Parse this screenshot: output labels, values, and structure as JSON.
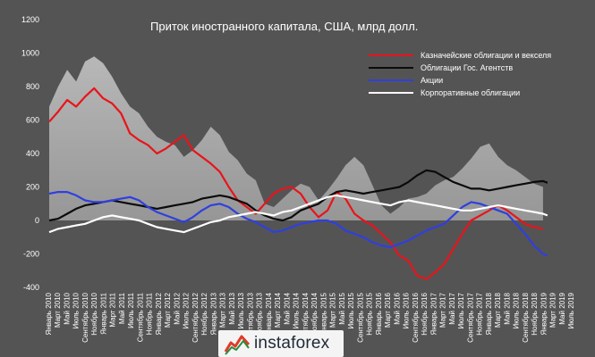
{
  "colors": {
    "background": "#545454",
    "grid": "#777777",
    "area_fill": "#9a9a9a",
    "area_gradient_top": "#bdbdbd",
    "treasuries": "#e8141a",
    "agencies": "#0b0b0b",
    "equities": "#2f3fe0",
    "corporate": "#ffffff"
  },
  "chart_data": {
    "type": "line",
    "title": "Приток иностранного капитала, США, млрд долл.",
    "xlabel": "",
    "ylabel": "",
    "ylim": [
      -400,
      1200
    ],
    "yticks": [
      -400,
      -200,
      0,
      200,
      400,
      600,
      800,
      1000,
      1200
    ],
    "grid": false,
    "legend_position": "top-right",
    "x_start": "2010-01",
    "x_end": "2019-07",
    "x_tick_labels": [
      "Январь 2010",
      "Март 2010",
      "Май 2010",
      "Июль 2010",
      "Сентябрь 2010",
      "Ноябрь 2010",
      "Январь 2011",
      "Март 2011",
      "Май 2011",
      "Июль 2011",
      "Сентябрь 2011",
      "Ноябрь 2011",
      "Январь 2012",
      "Март 2012",
      "Май 2012",
      "Июль 2012",
      "Сентябрь 2012",
      "Ноябрь 2012",
      "Январь 2013",
      "Март 2013",
      "Май 2013",
      "Июль 2013",
      "Сентябрь 2013",
      "Ноябрь 2013",
      "Январь 2014",
      "Март 2014",
      "Май 2014",
      "Июль 2014",
      "Сентябрь 2014",
      "Ноябрь 2014",
      "Январь 2015",
      "Март 2015",
      "Май 2015",
      "Июль 2015",
      "Сентябрь 2015",
      "Ноябрь 2015",
      "Январь 2016",
      "Март 2016",
      "Май 2016",
      "Июль 2016",
      "Сентябрь 2016",
      "Ноябрь 2016",
      "Январь 2017",
      "Март 2017",
      "Май 2017",
      "Июль 2017",
      "Сентябрь 2017",
      "Ноябрь 2017",
      "Январь 2018",
      "Март 2018",
      "Май 2018",
      "Июль 2018",
      "Сентябрь 2018",
      "Ноябрь 2018",
      "Январь 2019",
      "Март 2019",
      "Май 2019",
      "Июль 2019"
    ],
    "area": {
      "x": [
        "2010-01",
        "2010-03",
        "2010-05",
        "2010-07",
        "2010-09",
        "2010-11",
        "2011-01",
        "2011-03",
        "2011-05",
        "2011-07",
        "2011-09",
        "2011-11",
        "2012-01",
        "2012-03",
        "2012-05",
        "2012-07",
        "2012-09",
        "2012-11",
        "2013-01",
        "2013-03",
        "2013-05",
        "2013-07",
        "2013-09",
        "2013-11",
        "2014-01",
        "2014-03",
        "2014-05",
        "2014-07",
        "2014-09",
        "2014-11",
        "2015-01",
        "2015-03",
        "2015-05",
        "2015-07",
        "2015-09",
        "2015-11",
        "2016-01",
        "2016-03",
        "2016-05",
        "2016-07",
        "2016-09",
        "2016-11",
        "2017-01",
        "2017-03",
        "2017-05",
        "2017-07",
        "2017-09",
        "2017-11",
        "2018-01",
        "2018-03",
        "2018-05",
        "2018-07",
        "2018-09",
        "2018-11",
        "2019-01",
        "2019-03"
      ],
      "values": [
        680,
        800,
        900,
        830,
        950,
        980,
        940,
        860,
        760,
        680,
        640,
        560,
        500,
        470,
        450,
        380,
        420,
        480,
        560,
        510,
        410,
        360,
        280,
        240,
        100,
        80,
        130,
        180,
        220,
        200,
        120,
        180,
        250,
        330,
        380,
        330,
        210,
        90,
        40,
        80,
        130,
        140,
        160,
        210,
        240,
        260,
        310,
        370,
        440,
        460,
        380,
        330,
        300,
        260,
        220,
        200
      ]
    },
    "series": [
      {
        "name": "Казначейские облигации и векселя",
        "x": [
          "2010-01",
          "2010-03",
          "2010-05",
          "2010-07",
          "2010-09",
          "2010-11",
          "2011-01",
          "2011-03",
          "2011-05",
          "2011-07",
          "2011-09",
          "2011-11",
          "2012-01",
          "2012-03",
          "2012-05",
          "2012-07",
          "2012-09",
          "2012-11",
          "2013-01",
          "2013-03",
          "2013-05",
          "2013-07",
          "2013-09",
          "2013-11",
          "2014-01",
          "2014-03",
          "2014-05",
          "2014-07",
          "2014-09",
          "2014-11",
          "2015-01",
          "2015-03",
          "2015-05",
          "2015-07",
          "2015-09",
          "2015-11",
          "2016-01",
          "2016-03",
          "2016-05",
          "2016-07",
          "2016-09",
          "2016-11",
          "2017-01",
          "2017-03",
          "2017-05",
          "2017-07",
          "2017-09",
          "2017-11",
          "2018-01",
          "2018-03",
          "2018-05",
          "2018-07",
          "2018-09",
          "2018-11",
          "2019-01",
          "2019-03"
        ],
        "values": [
          590,
          650,
          720,
          680,
          740,
          790,
          730,
          700,
          640,
          520,
          480,
          450,
          400,
          430,
          470,
          510,
          420,
          380,
          340,
          290,
          200,
          120,
          80,
          40,
          100,
          160,
          190,
          200,
          160,
          80,
          20,
          60,
          170,
          130,
          40,
          0,
          -30,
          -80,
          -130,
          -210,
          -240,
          -330,
          -350,
          -310,
          -260,
          -170,
          -80,
          0,
          30,
          60,
          90,
          60,
          20,
          -20,
          -40,
          -50
        ]
      },
      {
        "name": "Облигации Гос. Агентств",
        "x": [
          "2010-01",
          "2010-03",
          "2010-05",
          "2010-07",
          "2010-09",
          "2010-11",
          "2011-01",
          "2011-03",
          "2011-05",
          "2011-07",
          "2011-09",
          "2011-11",
          "2012-01",
          "2012-03",
          "2012-05",
          "2012-07",
          "2012-09",
          "2012-11",
          "2013-01",
          "2013-03",
          "2013-05",
          "2013-07",
          "2013-09",
          "2013-11",
          "2014-01",
          "2014-03",
          "2014-05",
          "2014-07",
          "2014-09",
          "2014-11",
          "2015-01",
          "2015-03",
          "2015-05",
          "2015-07",
          "2015-09",
          "2015-11",
          "2016-01",
          "2016-03",
          "2016-05",
          "2016-07",
          "2016-09",
          "2016-11",
          "2017-01",
          "2017-03",
          "2017-05",
          "2017-07",
          "2017-09",
          "2017-11",
          "2018-01",
          "2018-03",
          "2018-05",
          "2018-07",
          "2018-09",
          "2018-11",
          "2019-01",
          "2019-03",
          "2019-04"
        ],
        "values": [
          0,
          10,
          40,
          70,
          90,
          100,
          110,
          120,
          110,
          100,
          90,
          80,
          70,
          80,
          90,
          100,
          110,
          130,
          140,
          150,
          140,
          120,
          100,
          60,
          30,
          10,
          0,
          20,
          60,
          80,
          100,
          140,
          170,
          180,
          170,
          160,
          170,
          180,
          190,
          200,
          230,
          270,
          300,
          290,
          260,
          230,
          210,
          190,
          190,
          180,
          190,
          200,
          210,
          220,
          230,
          235,
          225
        ]
      },
      {
        "name": "Акции",
        "x": [
          "2010-01",
          "2010-03",
          "2010-05",
          "2010-07",
          "2010-09",
          "2010-11",
          "2011-01",
          "2011-03",
          "2011-05",
          "2011-07",
          "2011-09",
          "2011-11",
          "2012-01",
          "2012-03",
          "2012-05",
          "2012-07",
          "2012-09",
          "2012-11",
          "2013-01",
          "2013-03",
          "2013-05",
          "2013-07",
          "2013-09",
          "2013-11",
          "2014-01",
          "2014-03",
          "2014-05",
          "2014-07",
          "2014-09",
          "2014-11",
          "2015-01",
          "2015-03",
          "2015-05",
          "2015-07",
          "2015-09",
          "2015-11",
          "2016-01",
          "2016-03",
          "2016-05",
          "2016-07",
          "2016-09",
          "2016-11",
          "2017-01",
          "2017-03",
          "2017-05",
          "2017-07",
          "2017-09",
          "2017-11",
          "2018-01",
          "2018-03",
          "2018-05",
          "2018-07",
          "2018-09",
          "2018-11",
          "2019-01",
          "2019-03",
          "2019-04"
        ],
        "values": [
          160,
          170,
          170,
          150,
          120,
          110,
          110,
          120,
          130,
          140,
          120,
          80,
          50,
          30,
          10,
          -10,
          20,
          60,
          90,
          100,
          80,
          40,
          10,
          -10,
          -40,
          -70,
          -60,
          -40,
          -20,
          -10,
          0,
          0,
          -20,
          -60,
          -80,
          -100,
          -130,
          -150,
          -160,
          -140,
          -120,
          -90,
          -60,
          -40,
          -20,
          30,
          80,
          110,
          100,
          80,
          60,
          40,
          -20,
          -80,
          -150,
          -200,
          -210
        ]
      },
      {
        "name": "Корпоративные облигации",
        "x": [
          "2010-01",
          "2010-03",
          "2010-05",
          "2010-07",
          "2010-09",
          "2010-11",
          "2011-01",
          "2011-03",
          "2011-05",
          "2011-07",
          "2011-09",
          "2011-11",
          "2012-01",
          "2012-03",
          "2012-05",
          "2012-07",
          "2012-09",
          "2012-11",
          "2013-01",
          "2013-03",
          "2013-05",
          "2013-07",
          "2013-09",
          "2013-11",
          "2014-01",
          "2014-03",
          "2014-05",
          "2014-07",
          "2014-09",
          "2014-11",
          "2015-01",
          "2015-03",
          "2015-05",
          "2015-07",
          "2015-09",
          "2015-11",
          "2016-01",
          "2016-03",
          "2016-05",
          "2016-07",
          "2016-09",
          "2016-11",
          "2017-01",
          "2017-03",
          "2017-05",
          "2017-07",
          "2017-09",
          "2017-11",
          "2018-01",
          "2018-03",
          "2018-05",
          "2018-07",
          "2018-09",
          "2018-11",
          "2019-01",
          "2019-03",
          "2019-04"
        ],
        "values": [
          -70,
          -50,
          -40,
          -30,
          -20,
          0,
          20,
          30,
          20,
          10,
          0,
          -20,
          -40,
          -50,
          -60,
          -70,
          -50,
          -30,
          -10,
          0,
          20,
          30,
          40,
          50,
          40,
          30,
          50,
          60,
          80,
          100,
          120,
          140,
          150,
          140,
          130,
          120,
          110,
          100,
          90,
          110,
          120,
          110,
          100,
          90,
          80,
          70,
          60,
          60,
          70,
          80,
          90,
          80,
          70,
          60,
          50,
          40,
          30
        ]
      }
    ]
  },
  "watermark": {
    "text": "instaforex"
  }
}
